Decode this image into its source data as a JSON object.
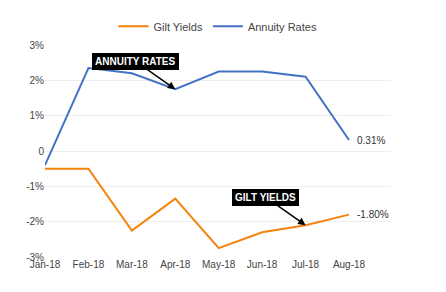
{
  "chart_data": {
    "type": "line",
    "categories": [
      "Jan-18",
      "Feb-18",
      "Mar-18",
      "Apr-18",
      "May-18",
      "Jun-18",
      "Jul-18",
      "Aug-18"
    ],
    "series": [
      {
        "name": "Gilt Yields",
        "color": "#F5820A",
        "values": [
          -0.5,
          -0.5,
          -2.25,
          -1.35,
          -2.75,
          -2.3,
          -2.1,
          -1.8
        ]
      },
      {
        "name": "Annuity Rates",
        "color": "#4472C4",
        "values": [
          -0.4,
          2.35,
          2.2,
          1.75,
          2.25,
          2.25,
          2.1,
          0.31
        ]
      }
    ],
    "ylim": [
      -3,
      3
    ],
    "yticks": [
      {
        "value": -3,
        "label": "-3%"
      },
      {
        "value": -2,
        "label": "-2%"
      },
      {
        "value": -1,
        "label": "-1%"
      },
      0,
      {
        "value": 1,
        "label": "1%"
      },
      {
        "value": 2,
        "label": "2%"
      },
      {
        "value": 3,
        "label": "3%"
      }
    ],
    "grid": true,
    "legend": "top",
    "annotations": [
      {
        "text": "0.31%",
        "series": "Annuity Rates",
        "x": "Aug-18"
      },
      {
        "text": "-1.80%",
        "series": "Gilt Yields",
        "x": "Aug-18"
      },
      {
        "text": "ANNUITY RATES",
        "series": "Annuity Rates",
        "x": "Apr-18",
        "arrow": true
      },
      {
        "text": "GILT YIELDS",
        "series": "Gilt Yields",
        "x": "Jul-18",
        "arrow": true
      }
    ]
  }
}
